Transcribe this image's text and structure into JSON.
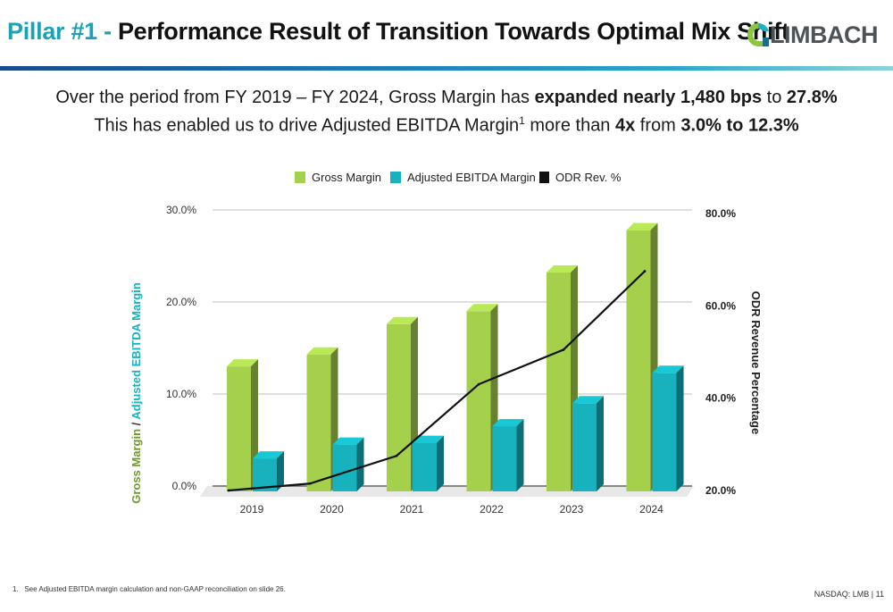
{
  "header": {
    "title_prefix": "Pillar #1 -",
    "title_main": "Performance Result of Transition Towards Optimal Mix Shift",
    "logo_text": "LIMBACH"
  },
  "subtitle": {
    "line1_a": "Over the period from FY 2019 – FY 2024, Gross Margin has ",
    "line1_b": "expanded nearly 1,480 bps",
    "line1_c": " to ",
    "line1_d": "27.8%",
    "line2_a": "This has enabled us to drive Adjusted EBITDA Margin",
    "line2_sup": "1",
    "line2_b": " more than ",
    "line2_c": "4x",
    "line2_d": " from ",
    "line2_e": "3.0% to 12.3%"
  },
  "chart_data": {
    "type": "bar",
    "categories": [
      "2019",
      "2020",
      "2021",
      "2022",
      "2023",
      "2024"
    ],
    "series": [
      {
        "name": "Gross Margin",
        "axis": "left",
        "values": [
          13.0,
          14.3,
          17.6,
          19.0,
          23.2,
          27.8
        ],
        "color": "#a5d04b"
      },
      {
        "name": "Adjusted EBITDA Margin",
        "axis": "left",
        "values": [
          3.0,
          4.5,
          4.7,
          6.5,
          9.0,
          12.3
        ],
        "color": "#17b2bd"
      },
      {
        "name": "ODR Rev. %",
        "axis": "right",
        "type": "line",
        "values": [
          20.0,
          21.5,
          27.5,
          43.0,
          50.5,
          67.5
        ],
        "color": "#111111"
      }
    ],
    "left_axis": {
      "label_a": "Gross Margin",
      "label_sep": " / ",
      "label_b": "Adjusted EBITDA Margin",
      "ylim": [
        0,
        30
      ],
      "ticks": [
        0,
        10,
        20,
        30
      ],
      "tick_labels": [
        "0.0%",
        "10.0%",
        "20.0%",
        "30.0%"
      ]
    },
    "right_axis": {
      "label": "ODR Revenue Percentage",
      "ylim": [
        20,
        80
      ],
      "ticks": [
        20,
        40,
        60,
        80
      ],
      "tick_labels": [
        "20.0%",
        "40.0%",
        "60.0%",
        "80.0%"
      ]
    },
    "grid": true,
    "legend": "top-center",
    "label_colors": {
      "gross_margin": "#6f9a2a",
      "adjusted_ebitda": "#17b2bd"
    }
  },
  "footer": {
    "footnote_num": "1.",
    "footnote_text": "See Adjusted EBITDA margin calculation and non-GAAP reconciliation on slide 26.",
    "page": "NASDAQ: LMB | 11"
  }
}
